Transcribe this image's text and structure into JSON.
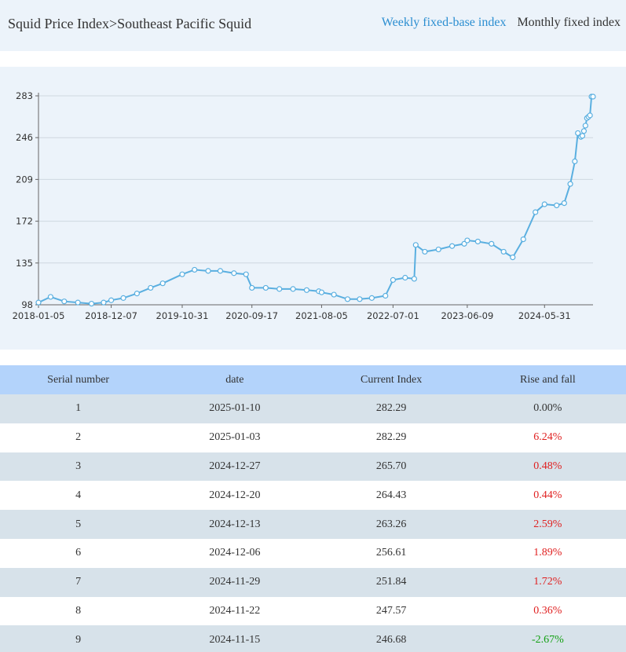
{
  "header": {
    "breadcrumb": "Squid Price Index>Southeast Pacific Squid",
    "tabs": [
      {
        "label": "Weekly fixed-base index",
        "active": true
      },
      {
        "label": "Monthly fixed index",
        "active": false
      }
    ]
  },
  "colors": {
    "header_bg": "#ecf3fa",
    "active_tab": "#2b8ed1",
    "line": "#5aafe0",
    "table_header_bg": "#b3d3fb",
    "row_alt_bg": "#d7e2ea",
    "rise": "#e02020",
    "fall": "#12a012"
  },
  "chart_data": {
    "type": "line",
    "title": "",
    "xlabel": "",
    "ylabel": "",
    "ylim": [
      98,
      283
    ],
    "yticks": [
      98,
      135,
      172,
      209,
      246,
      283
    ],
    "xticks": [
      "2018-01-05",
      "2018-12-07",
      "2019-10-31",
      "2020-09-17",
      "2021-08-05",
      "2022-07-01",
      "2023-06-09",
      "2024-05-31"
    ],
    "grid": "horizontal",
    "markers": "hollow-circle",
    "series": [
      {
        "x": [
          "2018-01-05",
          "2018-03-02",
          "2018-05-04",
          "2018-07-06",
          "2018-09-07",
          "2018-11-02",
          "2018-12-07",
          "2019-02-01",
          "2019-04-05",
          "2019-06-07",
          "2019-08-02",
          "2019-10-31",
          "2019-12-27",
          "2020-02-28",
          "2020-04-24",
          "2020-06-26",
          "2020-08-21",
          "2020-09-17",
          "2020-11-20",
          "2021-01-22",
          "2021-03-26",
          "2021-05-28",
          "2021-07-23",
          "2021-08-05",
          "2021-10-01",
          "2021-12-03",
          "2022-01-28",
          "2022-03-25",
          "2022-05-27",
          "2022-07-01",
          "2022-08-26",
          "2022-10-07",
          "2022-10-14",
          "2022-11-25",
          "2023-01-27",
          "2023-03-31",
          "2023-05-26",
          "2023-06-09",
          "2023-07-28",
          "2023-09-29",
          "2023-11-24",
          "2024-01-05",
          "2024-02-23",
          "2024-04-19",
          "2024-05-31",
          "2024-07-26",
          "2024-08-30",
          "2024-09-27",
          "2024-10-18",
          "2024-11-01",
          "2024-11-15",
          "2024-11-22",
          "2024-11-29",
          "2024-12-06",
          "2024-12-13",
          "2024-12-20",
          "2024-12-27",
          "2025-01-03",
          "2025-01-10"
        ],
        "values": [
          100,
          105,
          101,
          100,
          99,
          100,
          102,
          104,
          108,
          113,
          117,
          125,
          129,
          128,
          128,
          126,
          125,
          113,
          113,
          112,
          112,
          111,
          110,
          109,
          107,
          103,
          103,
          104,
          106,
          120,
          122,
          121,
          151,
          145,
          147,
          150,
          152,
          155,
          154,
          152,
          145,
          140,
          156,
          180,
          187,
          186,
          188,
          205,
          225,
          250,
          246.68,
          247.57,
          251.84,
          256.61,
          263.26,
          264.43,
          265.7,
          282.29,
          282.29
        ]
      }
    ]
  },
  "table": {
    "headers": [
      "Serial number",
      "date",
      "Current Index",
      "Rise and fall"
    ],
    "rows": [
      {
        "serial": "1",
        "date": "2025-01-10",
        "index": "282.29",
        "change": "0.00%",
        "trend": "flat"
      },
      {
        "serial": "2",
        "date": "2025-01-03",
        "index": "282.29",
        "change": "6.24%",
        "trend": "up"
      },
      {
        "serial": "3",
        "date": "2024-12-27",
        "index": "265.70",
        "change": "0.48%",
        "trend": "up"
      },
      {
        "serial": "4",
        "date": "2024-12-20",
        "index": "264.43",
        "change": "0.44%",
        "trend": "up"
      },
      {
        "serial": "5",
        "date": "2024-12-13",
        "index": "263.26",
        "change": "2.59%",
        "trend": "up"
      },
      {
        "serial": "6",
        "date": "2024-12-06",
        "index": "256.61",
        "change": "1.89%",
        "trend": "up"
      },
      {
        "serial": "7",
        "date": "2024-11-29",
        "index": "251.84",
        "change": "1.72%",
        "trend": "up"
      },
      {
        "serial": "8",
        "date": "2024-11-22",
        "index": "247.57",
        "change": "0.36%",
        "trend": "up"
      },
      {
        "serial": "9",
        "date": "2024-11-15",
        "index": "246.68",
        "change": "-2.67%",
        "trend": "down"
      }
    ]
  }
}
